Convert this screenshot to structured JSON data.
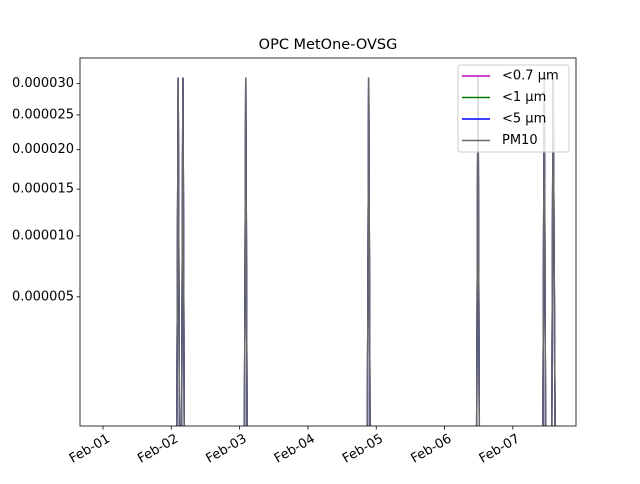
{
  "chart_data": {
    "type": "line",
    "title": "OPC MetOne-OVSG",
    "x": [
      -0.3,
      1.08,
      1.1,
      1.12,
      1.15,
      1.17,
      1.19,
      2.07,
      2.09,
      2.11,
      3.87,
      3.89,
      3.91,
      5.47,
      5.49,
      5.51,
      6.44,
      6.46,
      6.48,
      6.57,
      6.59,
      6.62
    ],
    "series": [
      {
        "name": "<0.7 µm",
        "color": "#bf00bf",
        "values": [
          0,
          0,
          3.1e-05,
          0,
          0,
          3.1e-05,
          0,
          0,
          3.1e-05,
          0,
          0,
          3.1e-05,
          0,
          0,
          3.1e-05,
          0,
          0,
          3.1e-05,
          0,
          0,
          3.1e-05,
          0
        ]
      },
      {
        "name": "<1 µm",
        "color": "#008000",
        "values": [
          0,
          0,
          3.1e-05,
          0,
          0,
          3.1e-05,
          0,
          0,
          3.1e-05,
          0,
          0,
          3.1e-05,
          0,
          0,
          3.1e-05,
          0,
          0,
          3.1e-05,
          0,
          0,
          3.1e-05,
          0
        ]
      },
      {
        "name": "<5 µm",
        "color": "#0000ff",
        "values": [
          0,
          0,
          3.1e-05,
          0,
          0,
          3.1e-05,
          0,
          0,
          3.1e-05,
          0,
          0,
          3.1e-05,
          0,
          0,
          3.1e-05,
          0,
          0,
          3.1e-05,
          0,
          0,
          3.1e-05,
          0
        ]
      },
      {
        "name": "PM10",
        "color": "#696969",
        "values": [
          0,
          0,
          3.1e-05,
          0,
          0,
          3.1e-05,
          0,
          0,
          3.1e-05,
          0,
          0,
          3.1e-05,
          0,
          0,
          3.1e-05,
          0,
          0,
          3.1e-05,
          0,
          0,
          3.1e-05,
          0
        ]
      }
    ],
    "xlim": [
      -0.337,
      6.925
    ],
    "xticks": [
      {
        "value": 0,
        "label": "Feb-01"
      },
      {
        "value": 1,
        "label": "Feb-02"
      },
      {
        "value": 2,
        "label": "Feb-03"
      },
      {
        "value": 3,
        "label": "Feb-04"
      },
      {
        "value": 4,
        "label": "Feb-05"
      },
      {
        "value": 5,
        "label": "Feb-06"
      },
      {
        "value": 6,
        "label": "Feb-07"
      }
    ],
    "ylim": [
      7.5e-08,
      3.44e-05
    ],
    "yscale": "sqrt",
    "yticks": [
      {
        "value": 5e-06,
        "label": "0.000005"
      },
      {
        "value": 1e-05,
        "label": "0.000010"
      },
      {
        "value": 1.5e-05,
        "label": "0.000015"
      },
      {
        "value": 2e-05,
        "label": "0.000020"
      },
      {
        "value": 2.5e-05,
        "label": "0.000025"
      },
      {
        "value": 3e-05,
        "label": "0.000030"
      }
    ],
    "legend": "upper right",
    "grid": false
  }
}
